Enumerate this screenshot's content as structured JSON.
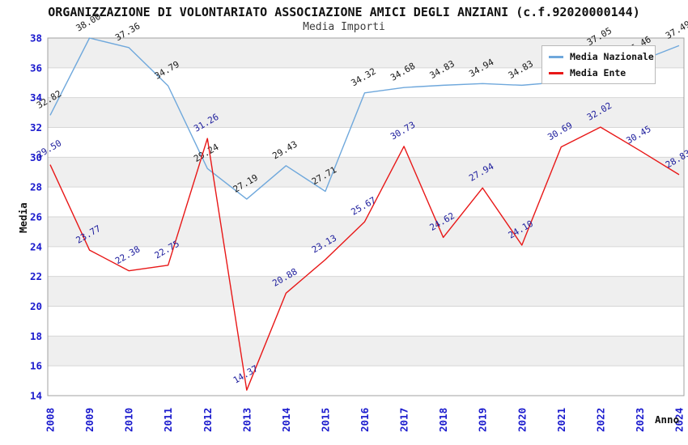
{
  "header": {
    "title": "ORGANIZZAZIONE DI VOLONTARIATO ASSOCIAZIONE AMICI DEGLI ANZIANI (c.f.92020000144)",
    "subtitle": "Media Importi"
  },
  "legend": [
    {
      "label": "Media Nazionale",
      "color": "#6fa8dc"
    },
    {
      "label": "Media Ente",
      "color": "#e81717"
    }
  ],
  "axes": {
    "y_label": "Media",
    "x_label": "Anno",
    "y_ticks": [
      14,
      16,
      18,
      20,
      22,
      24,
      26,
      28,
      30,
      32,
      34,
      36,
      38
    ],
    "x_ticks": [
      "2008",
      "2009",
      "2010",
      "2011",
      "2012",
      "2013",
      "2014",
      "2015",
      "2016",
      "2017",
      "2018",
      "2019",
      "2020",
      "2021",
      "2022",
      "2023",
      "2024"
    ]
  },
  "chart_data": {
    "type": "line",
    "title": "ORGANIZZAZIONE DI VOLONTARIATO ASSOCIAZIONE AMICI DEGLI ANZIANI (c.f.92020000144)",
    "subtitle": "Media Importi",
    "xlabel": "Anno",
    "ylabel": "Media",
    "x": [
      2008,
      2009,
      2010,
      2011,
      2012,
      2013,
      2014,
      2015,
      2016,
      2017,
      2018,
      2019,
      2020,
      2021,
      2022,
      2023,
      2024
    ],
    "series": [
      {
        "name": "Media Nazionale",
        "color": "#6fa8dc",
        "label_color": "#1a1a1a",
        "values": [
          32.82,
          38.0,
          37.36,
          34.79,
          29.24,
          27.19,
          29.43,
          27.71,
          34.32,
          34.68,
          34.83,
          34.94,
          34.83,
          35.05,
          37.05,
          36.46,
          37.49
        ]
      },
      {
        "name": "Media Ente",
        "color": "#e81717",
        "label_color": "#1c1c9c",
        "values": [
          29.5,
          23.77,
          22.38,
          22.75,
          31.26,
          14.37,
          20.88,
          23.13,
          25.67,
          30.73,
          24.62,
          27.94,
          24.1,
          30.69,
          32.02,
          30.45,
          28.83
        ]
      }
    ],
    "ylim": [
      14,
      38
    ],
    "grid": true,
    "band_shading": true,
    "legend_position": "top-right",
    "tick_color": "#1a1acd",
    "band_color": "#efefef",
    "grid_color": "#d6d6d6",
    "frame_color": "#a0a0a0"
  }
}
